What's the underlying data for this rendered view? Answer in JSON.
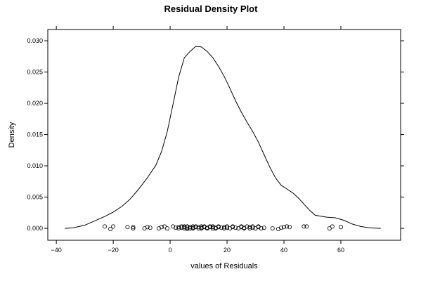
{
  "chart_data": {
    "type": "line",
    "title": "Residual Density Plot",
    "xlabel": "values of Residuals",
    "ylabel": "Density",
    "xlim": [
      -43,
      81
    ],
    "ylim": [
      -0.0019,
      0.0318
    ],
    "xticks": [
      -40,
      -20,
      0,
      20,
      40,
      60
    ],
    "xtick_labels": [
      "−40",
      "−20",
      "0",
      "20",
      "40",
      "60"
    ],
    "yticks": [
      0.0,
      0.005,
      0.01,
      0.015,
      0.02,
      0.025,
      0.03
    ],
    "ytick_labels": [
      "0.000",
      "0.005",
      "0.010",
      "0.015",
      "0.020",
      "0.025",
      "0.030"
    ],
    "grid": false,
    "series": [
      {
        "kind": "density-curve",
        "x": [
          -37,
          -34,
          -30,
          -27,
          -23,
          -20,
          -17,
          -14,
          -11,
          -8,
          -5,
          -3,
          -1,
          1,
          3,
          5,
          7,
          9,
          11,
          13,
          15,
          17,
          19,
          21,
          23,
          25,
          27,
          29,
          31,
          33,
          35,
          37,
          39,
          41,
          43,
          45,
          47,
          49,
          51,
          55,
          58,
          61,
          64,
          67,
          70,
          74
        ],
        "y": [
          0.0,
          0.0001,
          0.0005,
          0.0011,
          0.0019,
          0.0026,
          0.0035,
          0.0047,
          0.0063,
          0.0081,
          0.0101,
          0.0123,
          0.0155,
          0.0198,
          0.0242,
          0.0273,
          0.0283,
          0.0291,
          0.029,
          0.0283,
          0.0273,
          0.0259,
          0.0243,
          0.0224,
          0.0204,
          0.0186,
          0.017,
          0.0155,
          0.0138,
          0.0118,
          0.0098,
          0.0081,
          0.0069,
          0.0063,
          0.0057,
          0.0049,
          0.0039,
          0.0029,
          0.0021,
          0.0018,
          0.0017,
          0.0013,
          0.0007,
          0.0003,
          0.0001,
          0.0
        ]
      },
      {
        "kind": "rug-points",
        "x": [
          -23,
          -21,
          -20,
          -15,
          -13,
          -13,
          -9,
          -8,
          -7,
          -4,
          -3,
          -2,
          -1,
          1,
          2,
          3,
          3,
          4,
          4,
          5,
          5,
          5,
          6,
          6,
          6,
          7,
          7,
          8,
          8,
          8,
          9,
          9,
          10,
          10,
          11,
          11,
          11,
          12,
          12,
          13,
          13,
          14,
          14,
          15,
          15,
          15,
          16,
          16,
          17,
          17,
          18,
          19,
          19,
          20,
          20,
          21,
          22,
          22,
          23,
          24,
          25,
          25,
          26,
          26,
          27,
          28,
          28,
          29,
          29,
          30,
          31,
          31,
          32,
          33,
          36,
          38,
          39,
          40,
          41,
          42,
          47,
          48,
          56,
          57,
          60
        ],
        "y": [
          0.0003,
          -0.0001,
          0.0003,
          0.0002,
          0.0,
          0.0002,
          0.0,
          0.0002,
          0.0001,
          0.0,
          0.0002,
          0.0003,
          0.0,
          0.0003,
          0.0001,
          0.0,
          0.0002,
          0.0001,
          0.0003,
          0.0,
          0.0002,
          0.0003,
          0.0001,
          0.0003,
          -0.0001,
          0.0002,
          0.0,
          0.0003,
          0.0001,
          0.0,
          0.0002,
          0.0003,
          0.0,
          0.0002,
          0.0003,
          0.0001,
          0.0,
          0.0002,
          0.0003,
          0.0001,
          0.0,
          0.0003,
          0.0002,
          0.0,
          0.0002,
          0.0003,
          0.0001,
          0.0,
          0.0002,
          0.0003,
          0.0001,
          0.0002,
          0.0,
          0.0003,
          0.0001,
          0.0,
          0.0002,
          0.0003,
          0.0001,
          0.0,
          0.0003,
          0.0002,
          0.0001,
          0.0,
          0.0003,
          0.0002,
          0.0,
          0.0003,
          0.0001,
          0.0,
          0.0002,
          0.0003,
          0.0,
          0.0001,
          0.0,
          -0.0001,
          0.0001,
          0.0002,
          0.0003,
          0.0002,
          0.0003,
          0.0003,
          0.0,
          0.0003,
          0.0002
        ]
      }
    ]
  }
}
